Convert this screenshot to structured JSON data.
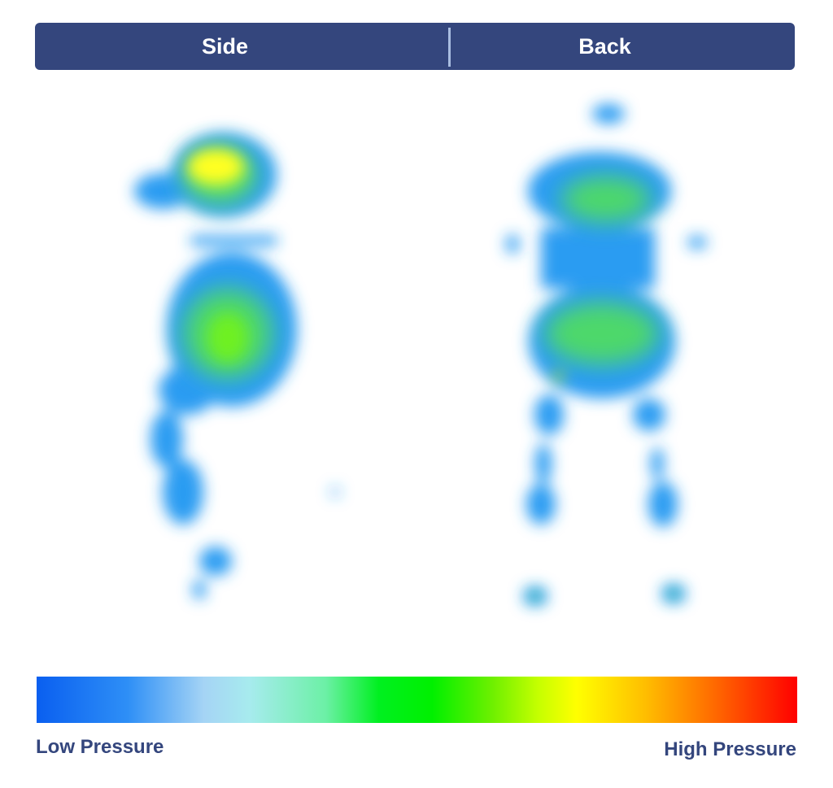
{
  "tabs": [
    {
      "label": "Side"
    },
    {
      "label": "Back"
    }
  ],
  "legend": {
    "low_label": "Low Pressure",
    "high_label": "High Pressure",
    "colors": [
      "#0a5ff0",
      "#a7ebee",
      "#00f000",
      "#ffff00",
      "#ff0000"
    ]
  }
}
